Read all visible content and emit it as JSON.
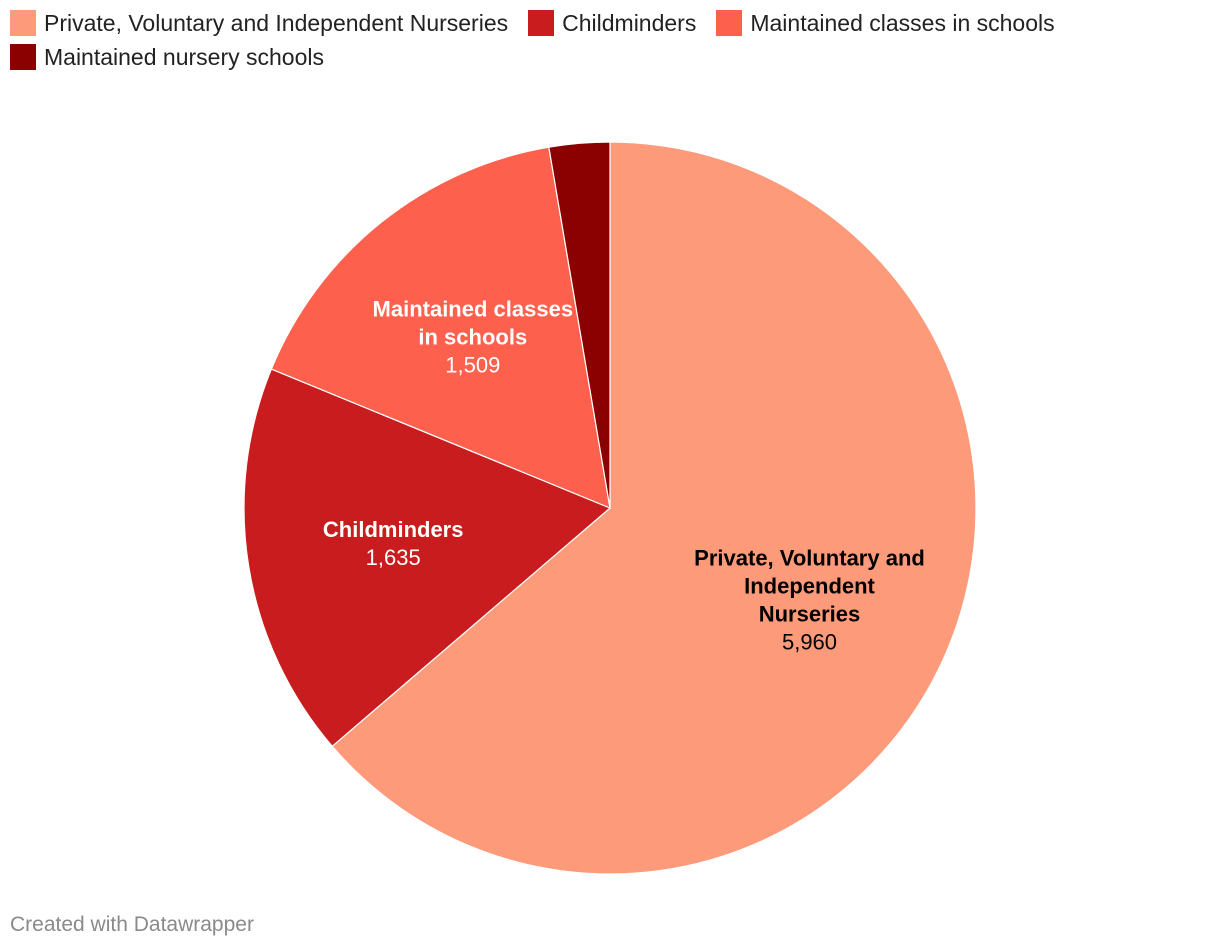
{
  "chart_data": {
    "type": "pie",
    "slices": [
      {
        "name": "Private, Voluntary and Independent Nurseries",
        "label_lines": [
          "Private, Voluntary and",
          "Independent",
          "Nurseries"
        ],
        "value": 5960,
        "value_label": "5,960",
        "color": "#fc9a7a",
        "label_color": "#000000"
      },
      {
        "name": "Childminders",
        "label_lines": [
          "Childminders"
        ],
        "value": 1635,
        "value_label": "1,635",
        "color": "#c81c1e",
        "label_color": "#ffffff"
      },
      {
        "name": "Maintained classes in schools",
        "label_lines": [
          "Maintained classes",
          "in schools"
        ],
        "value": 1509,
        "value_label": "1,509",
        "color": "#fe604e",
        "label_color": "#ffffff"
      },
      {
        "name": "Maintained nursery schools",
        "label_lines": [],
        "value": 250,
        "value_label": "",
        "color": "#8b0000",
        "label_color": "#ffffff"
      }
    ],
    "legend": {
      "position": "top-left"
    }
  },
  "footer": {
    "credit": "Created with Datawrapper"
  }
}
